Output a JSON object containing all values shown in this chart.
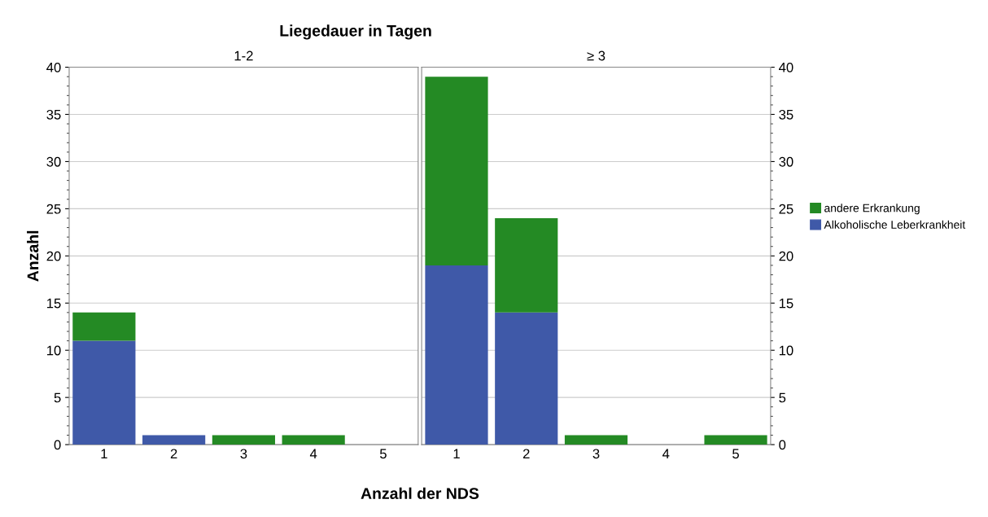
{
  "chart_data": [
    {
      "type": "bar",
      "title": "1-2",
      "annotations": [
        "Liegedauer in Tagen"
      ],
      "xlabel": "Anzahl der NDS",
      "ylabel": "Anzahl",
      "stacked": true,
      "categories": [
        "1",
        "2",
        "3",
        "4",
        "5"
      ],
      "series": [
        {
          "name": "Alkoholische Leberkrankheit",
          "color": "#3f59a8",
          "values": [
            11,
            1,
            0,
            0,
            0
          ]
        },
        {
          "name": "andere Erkrankung",
          "color": "#248a24",
          "values": [
            3,
            0,
            1,
            1,
            0
          ]
        }
      ],
      "ylim": [
        0,
        40
      ],
      "yticks": [
        0,
        5,
        10,
        15,
        20,
        25,
        30,
        35,
        40
      ],
      "grid": "y",
      "legend": "right"
    },
    {
      "type": "bar",
      "title": "≥ 3",
      "stacked": true,
      "categories": [
        "1",
        "2",
        "3",
        "4",
        "5"
      ],
      "series": [
        {
          "color": "#3f59a8",
          "values": [
            19,
            14,
            0,
            0,
            0
          ]
        },
        {
          "color": "#248a24",
          "values": [
            20,
            10,
            1,
            0,
            1
          ]
        }
      ],
      "ylim": [
        0,
        40
      ],
      "yticks": [
        0,
        5,
        10,
        15,
        20,
        25,
        30,
        35,
        40
      ],
      "grid": "y"
    }
  ]
}
